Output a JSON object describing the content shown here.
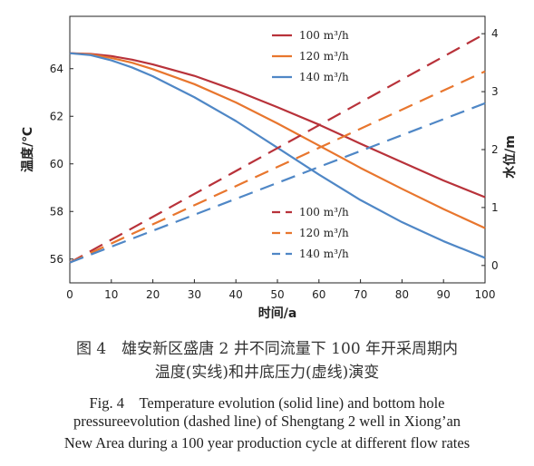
{
  "chart_data": {
    "type": "line",
    "xlabel": "时间/a",
    "ylabel_left": "温度/℃",
    "ylabel_right": "水位/m",
    "xlim": [
      0,
      100
    ],
    "ylim_left": [
      55,
      66.2
    ],
    "ylim_right": [
      -0.3,
      4.3
    ],
    "x_ticks": [
      0,
      10,
      20,
      30,
      40,
      50,
      60,
      70,
      80,
      90,
      100
    ],
    "y_left_ticks": [
      56,
      58,
      60,
      62,
      64
    ],
    "y_right_ticks": [
      0,
      1,
      2,
      3,
      4
    ],
    "legend_temperature": [
      "100 m³/h",
      "120 m³/h",
      "140 m³/h"
    ],
    "legend_pressure": [
      "100 m³/h",
      "120 m³/h",
      "140 m³/h"
    ],
    "series": [
      {
        "group": "temperature",
        "label": "100 m³/h",
        "color": "#b8323a",
        "style": "solid",
        "axis": "left",
        "x": [
          0,
          5,
          10,
          15,
          20,
          30,
          40,
          50,
          60,
          70,
          80,
          90,
          100
        ],
        "y": [
          64.65,
          64.62,
          64.53,
          64.38,
          64.18,
          63.7,
          63.08,
          62.38,
          61.65,
          60.85,
          60.07,
          59.3,
          58.6
        ]
      },
      {
        "group": "temperature",
        "label": "120 m³/h",
        "color": "#e8762e",
        "style": "solid",
        "axis": "left",
        "x": [
          0,
          5,
          10,
          15,
          20,
          30,
          40,
          50,
          60,
          70,
          80,
          90,
          100
        ],
        "y": [
          64.65,
          64.6,
          64.45,
          64.25,
          63.98,
          63.35,
          62.58,
          61.7,
          60.77,
          59.83,
          58.95,
          58.1,
          57.3
        ]
      },
      {
        "group": "temperature",
        "label": "140 m³/h",
        "color": "#4f87c6",
        "style": "solid",
        "axis": "left",
        "x": [
          0,
          5,
          10,
          15,
          20,
          30,
          40,
          50,
          60,
          70,
          80,
          90,
          100
        ],
        "y": [
          64.65,
          64.57,
          64.35,
          64.05,
          63.68,
          62.8,
          61.8,
          60.68,
          59.55,
          58.48,
          57.55,
          56.75,
          56.05
        ]
      },
      {
        "group": "pressure",
        "label": "100 m³/h",
        "color": "#b8323a",
        "style": "dashed",
        "axis": "right",
        "x": [
          0,
          100
        ],
        "y": [
          0.05,
          4.0
        ]
      },
      {
        "group": "pressure",
        "label": "120 m³/h",
        "color": "#e8762e",
        "style": "dashed",
        "axis": "right",
        "x": [
          0,
          100
        ],
        "y": [
          0.05,
          3.35
        ]
      },
      {
        "group": "pressure",
        "label": "140 m³/h",
        "color": "#4f87c6",
        "style": "dashed",
        "axis": "right",
        "x": [
          0,
          100
        ],
        "y": [
          0.05,
          2.8
        ]
      }
    ]
  },
  "caption": {
    "cn_line1": "图 4　雄安新区盛唐 2 井不同流量下 100 年开采周期内",
    "cn_line2": "温度(实线)和井底压力(虚线)演变",
    "en_line1": "Fig. 4　Temperature evolution (solid line) and bottom hole",
    "en_line2": "pressureevolution (dashed line) of Shengtang 2 well in Xiong’an",
    "en_line3": "New Area during a 100 year production cycle at different flow rates"
  }
}
